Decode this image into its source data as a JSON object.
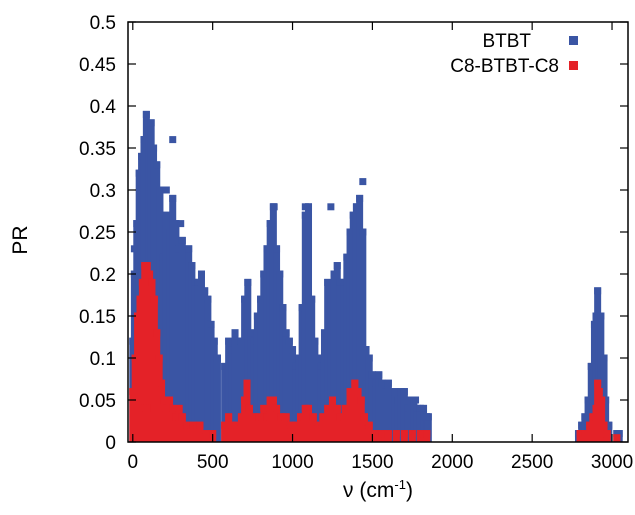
{
  "chart_data": {
    "type": "scatter",
    "title": "",
    "xlabel": "ν (cm",
    "xlabel_superscript": "-1",
    "xlabel_suffix": ")",
    "ylabel": "PR",
    "xlim": [
      -30,
      3100
    ],
    "ylim": [
      0,
      0.5
    ],
    "xticks": [
      "0",
      "500",
      "1000",
      "1500",
      "2000",
      "2500",
      "3000"
    ],
    "yticks": [
      "0",
      "0.05",
      "0.1",
      "0.15",
      "0.2",
      "0.25",
      "0.3",
      "0.35",
      "0.4",
      "0.45",
      "0.5"
    ],
    "grid": false,
    "legend_position": "top-right",
    "series": [
      {
        "name": "BTBT",
        "color": "#3a55a4",
        "envelope": [
          [
            0,
            0.12
          ],
          [
            10,
            0.2
          ],
          [
            25,
            0.26
          ],
          [
            40,
            0.32
          ],
          [
            55,
            0.34
          ],
          [
            70,
            0.36
          ],
          [
            85,
            0.39
          ],
          [
            100,
            0.37
          ],
          [
            115,
            0.38
          ],
          [
            130,
            0.35
          ],
          [
            150,
            0.33
          ],
          [
            170,
            0.3
          ],
          [
            190,
            0.22
          ],
          [
            210,
            0.27
          ],
          [
            230,
            0.25
          ],
          [
            250,
            0.29
          ],
          [
            270,
            0.26
          ],
          [
            290,
            0.23
          ],
          [
            310,
            0.24
          ],
          [
            330,
            0.2
          ],
          [
            350,
            0.23
          ],
          [
            370,
            0.21
          ],
          [
            390,
            0.19
          ],
          [
            410,
            0.19
          ],
          [
            430,
            0.2
          ],
          [
            450,
            0.18
          ],
          [
            470,
            0.17
          ],
          [
            490,
            0.14
          ],
          [
            510,
            0.12
          ],
          [
            530,
            0.1
          ],
          [
            545,
            0.0
          ],
          [
            575,
            0.09
          ],
          [
            600,
            0.12
          ],
          [
            620,
            0.11
          ],
          [
            640,
            0.13
          ],
          [
            660,
            0.12
          ],
          [
            680,
            0.12
          ],
          [
            700,
            0.17
          ],
          [
            720,
            0.19
          ],
          [
            740,
            0.13
          ],
          [
            760,
            0.12
          ],
          [
            780,
            0.15
          ],
          [
            800,
            0.17
          ],
          [
            820,
            0.2
          ],
          [
            840,
            0.23
          ],
          [
            860,
            0.26
          ],
          [
            880,
            0.28
          ],
          [
            900,
            0.23
          ],
          [
            920,
            0.2
          ],
          [
            940,
            0.16
          ],
          [
            960,
            0.13
          ],
          [
            980,
            0.12
          ],
          [
            1000,
            0.11
          ],
          [
            1020,
            0.09
          ],
          [
            1040,
            0.1
          ],
          [
            1060,
            0.16
          ],
          [
            1080,
            0.27
          ],
          [
            1100,
            0.28
          ],
          [
            1120,
            0.17
          ],
          [
            1140,
            0.12
          ],
          [
            1160,
            0.1
          ],
          [
            1180,
            0.09
          ],
          [
            1200,
            0.13
          ],
          [
            1220,
            0.19
          ],
          [
            1240,
            0.17
          ],
          [
            1260,
            0.2
          ],
          [
            1280,
            0.21
          ],
          [
            1300,
            0.19
          ],
          [
            1320,
            0.19
          ],
          [
            1340,
            0.22
          ],
          [
            1360,
            0.25
          ],
          [
            1380,
            0.27
          ],
          [
            1400,
            0.28
          ],
          [
            1420,
            0.29
          ],
          [
            1440,
            0.25
          ],
          [
            1460,
            0.11
          ],
          [
            1480,
            0.1
          ],
          [
            1500,
            0.08
          ],
          [
            1520,
            0.07
          ],
          [
            1540,
            0.08
          ],
          [
            1560,
            0.07
          ],
          [
            1580,
            0.06
          ],
          [
            1600,
            0.07
          ],
          [
            1620,
            0.05
          ],
          [
            1640,
            0.06
          ],
          [
            1660,
            0.05
          ],
          [
            1680,
            0.06
          ],
          [
            1700,
            0.06
          ],
          [
            1720,
            0.04
          ],
          [
            1740,
            0.05
          ],
          [
            1760,
            0.05
          ],
          [
            1780,
            0.04
          ],
          [
            1800,
            0.04
          ],
          [
            1820,
            0.04
          ],
          [
            1840,
            0.03
          ],
          [
            1850,
            0.03
          ],
          [
            1860,
            0.0
          ],
          [
            2780,
            0.0
          ],
          [
            2790,
            0.01
          ],
          [
            2810,
            0.02
          ],
          [
            2830,
            0.03
          ],
          [
            2850,
            0.05
          ],
          [
            2870,
            0.09
          ],
          [
            2890,
            0.14
          ],
          [
            2900,
            0.15
          ],
          [
            2910,
            0.18
          ],
          [
            2920,
            0.13
          ],
          [
            2930,
            0.15
          ],
          [
            2950,
            0.1
          ],
          [
            2960,
            0.05
          ],
          [
            2980,
            0.02
          ],
          [
            3000,
            0.0
          ],
          [
            3020,
            0.0
          ],
          [
            3030,
            0.01
          ],
          [
            3045,
            0.01
          ],
          [
            3060,
            0.0
          ]
        ],
        "outliers": [
          [
            10,
            0.23
          ],
          [
            35,
            0.2
          ],
          [
            210,
            0.3
          ],
          [
            250,
            0.36
          ],
          [
            300,
            0.26
          ],
          [
            1440,
            0.31
          ],
          [
            1240,
            0.28
          ],
          [
            1080,
            0.28
          ],
          [
            885,
            0.28
          ],
          [
            1770,
            0.05
          ],
          [
            1835,
            0.03
          ]
        ]
      },
      {
        "name": "C8-BTBT-C8",
        "color": "#e42228",
        "envelope": [
          [
            0,
            0.06
          ],
          [
            15,
            0.1
          ],
          [
            30,
            0.15
          ],
          [
            45,
            0.17
          ],
          [
            60,
            0.19
          ],
          [
            75,
            0.21
          ],
          [
            90,
            0.21
          ],
          [
            105,
            0.2
          ],
          [
            120,
            0.19
          ],
          [
            135,
            0.17
          ],
          [
            150,
            0.13
          ],
          [
            165,
            0.1
          ],
          [
            180,
            0.07
          ],
          [
            195,
            0.05
          ],
          [
            210,
            0.04
          ],
          [
            230,
            0.05
          ],
          [
            250,
            0.04
          ],
          [
            270,
            0.03
          ],
          [
            290,
            0.04
          ],
          [
            310,
            0.03
          ],
          [
            340,
            0.02
          ],
          [
            380,
            0.02
          ],
          [
            420,
            0.02
          ],
          [
            460,
            0.01
          ],
          [
            500,
            0.01
          ],
          [
            540,
            0.0
          ],
          [
            575,
            0.02
          ],
          [
            600,
            0.03
          ],
          [
            620,
            0.02
          ],
          [
            650,
            0.02
          ],
          [
            680,
            0.03
          ],
          [
            700,
            0.05
          ],
          [
            715,
            0.07
          ],
          [
            730,
            0.04
          ],
          [
            760,
            0.03
          ],
          [
            790,
            0.03
          ],
          [
            820,
            0.04
          ],
          [
            840,
            0.03
          ],
          [
            860,
            0.05
          ],
          [
            880,
            0.05
          ],
          [
            900,
            0.04
          ],
          [
            930,
            0.03
          ],
          [
            960,
            0.03
          ],
          [
            990,
            0.02
          ],
          [
            1020,
            0.02
          ],
          [
            1050,
            0.03
          ],
          [
            1080,
            0.04
          ],
          [
            1100,
            0.04
          ],
          [
            1130,
            0.03
          ],
          [
            1160,
            0.02
          ],
          [
            1190,
            0.03
          ],
          [
            1220,
            0.04
          ],
          [
            1250,
            0.05
          ],
          [
            1280,
            0.04
          ],
          [
            1300,
            0.03
          ],
          [
            1330,
            0.04
          ],
          [
            1360,
            0.06
          ],
          [
            1390,
            0.07
          ],
          [
            1410,
            0.06
          ],
          [
            1430,
            0.05
          ],
          [
            1450,
            0.03
          ],
          [
            1480,
            0.02
          ],
          [
            1520,
            0.01
          ],
          [
            1560,
            0.01
          ],
          [
            1600,
            0.01
          ],
          [
            1650,
            0.01
          ],
          [
            1700,
            0.01
          ],
          [
            1750,
            0.01
          ],
          [
            1800,
            0.01
          ],
          [
            1840,
            0.01
          ],
          [
            1860,
            0.0
          ],
          [
            2780,
            0.0
          ],
          [
            2800,
            0.01
          ],
          [
            2830,
            0.01
          ],
          [
            2860,
            0.02
          ],
          [
            2880,
            0.03
          ],
          [
            2900,
            0.04
          ],
          [
            2910,
            0.07
          ],
          [
            2920,
            0.06
          ],
          [
            2935,
            0.05
          ],
          [
            2950,
            0.02
          ],
          [
            2970,
            0.01
          ],
          [
            3000,
            0.0
          ],
          [
            3030,
            0.005
          ],
          [
            3060,
            0.0
          ]
        ],
        "outliers": [
          [
            20,
            0.05
          ],
          [
            40,
            0.04
          ],
          [
            90,
            0.04
          ]
        ]
      }
    ]
  }
}
